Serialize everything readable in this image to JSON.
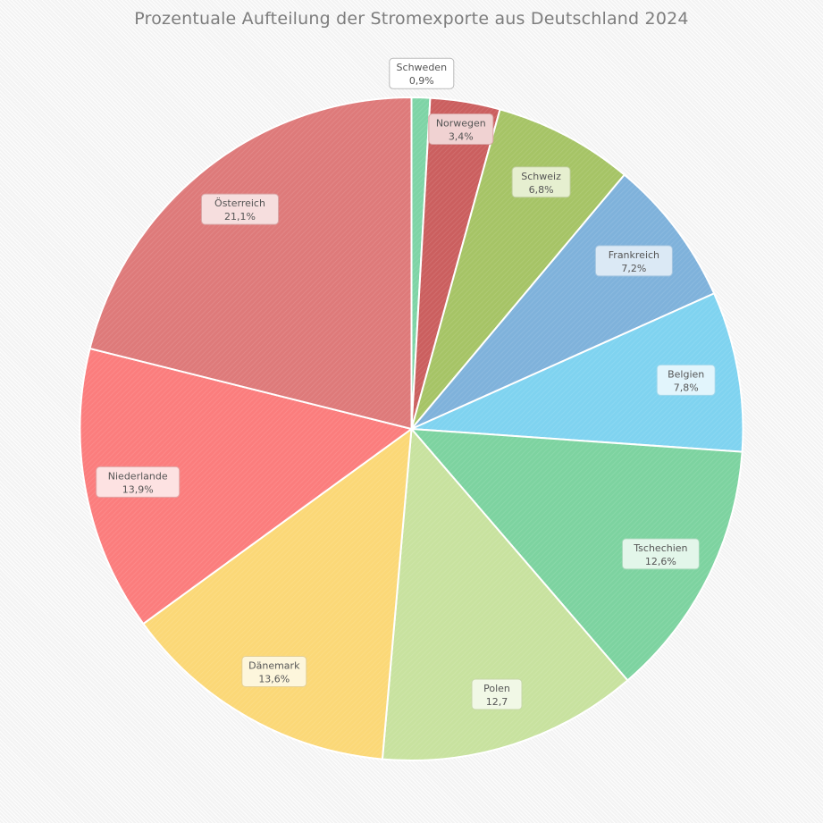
{
  "chart_data": {
    "type": "pie",
    "title": "Prozentuale Aufteilung der Stromexporte aus Deutschland  2024",
    "slices": [
      {
        "name": "Schweden",
        "value": 0.9,
        "label": "0,9%",
        "color": "#7ed4a6",
        "labelBg": "#ffffff",
        "labelBorder": "#bbbbbb"
      },
      {
        "name": "Norwegen",
        "value": 3.4,
        "label": "3,4%",
        "color": "#cb5f5f",
        "labelBg": "#f0d2d2",
        "labelBorder": "#d8a3a3"
      },
      {
        "name": "Schweiz",
        "value": 6.8,
        "label": "6,8%",
        "color": "#a6c466",
        "labelBg": "#e6efd0",
        "labelBorder": "#bccb98"
      },
      {
        "name": "Frankreich",
        "value": 7.2,
        "label": "7,2%",
        "color": "#7fb2db",
        "labelBg": "#dbe9f5",
        "labelBorder": "#a6c6e0"
      },
      {
        "name": "Belgien",
        "value": 7.8,
        "label": "7,8%",
        "color": "#7fd3f0",
        "labelBg": "#e2f5fc",
        "labelBorder": "#a2d8ec"
      },
      {
        "name": "Tschechien",
        "value": 12.6,
        "label": "12,6%",
        "color": "#7dd3a0",
        "labelBg": "#e3f6ea",
        "labelBorder": "#a6d8b9"
      },
      {
        "name": "Polen",
        "value": 12.7,
        "label": "12,7",
        "color": "#c8e29f",
        "labelBg": "#f1f8e6",
        "labelBorder": "#c6d7a8"
      },
      {
        "name": "Dänemark",
        "value": 13.6,
        "label": "13,6%",
        "color": "#fbd877",
        "labelBg": "#fdf6dc",
        "labelBorder": "#e3cf96"
      },
      {
        "name": "Niederlande",
        "value": 13.9,
        "label": "13,9%",
        "color": "#fb7d7d",
        "labelBg": "#fde2e2",
        "labelBorder": "#e1a8a8"
      },
      {
        "name": "Österreich",
        "value": 21.1,
        "label": "21,1%",
        "color": "#de7a7a",
        "labelBg": "#f6dede",
        "labelBorder": "#d9a8a8"
      }
    ],
    "legend": "none",
    "start_angle_deg": 0,
    "direction": "clockwise"
  }
}
